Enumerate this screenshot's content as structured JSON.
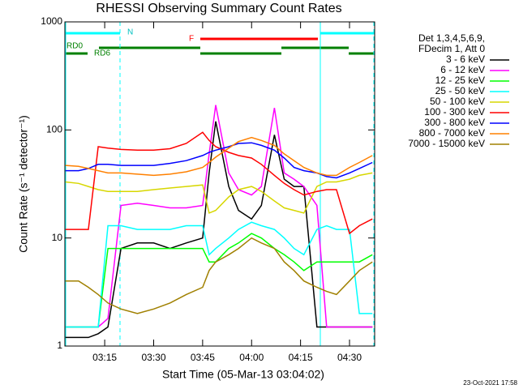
{
  "chart_data": {
    "type": "line",
    "title": "RHESSI Observing Summary Count Rates",
    "x_label": "Start Time (05-Mar-13 03:04:02)",
    "y_label": "Count Rate (s⁻¹ detector⁻¹)",
    "legend_title": [
      "Det 1,3,4,5,6,9,",
      "FDecim 1, Att 0"
    ],
    "footer": "23-Oct-2021 17:58",
    "annotations": [
      "N",
      "F",
      "RD0",
      "RD6"
    ],
    "log_y": true,
    "xlim": [
      2.8,
      97.7
    ],
    "xticks": [
      {
        "value": 15,
        "label": "03:15"
      },
      {
        "value": 30,
        "label": "03:30"
      },
      {
        "value": 45,
        "label": "03:45"
      },
      {
        "value": 60,
        "label": "04:00"
      },
      {
        "value": 75,
        "label": "04:15"
      },
      {
        "value": 90,
        "label": "04:30"
      }
    ],
    "ylim": [
      1,
      1000
    ],
    "yticks": [
      1,
      10,
      100,
      1000
    ],
    "x": [
      3,
      7,
      10,
      13,
      16,
      20,
      25,
      30,
      35,
      40,
      45,
      47,
      49,
      53,
      56,
      60,
      63,
      67,
      70,
      73,
      76,
      80,
      83,
      86,
      90,
      93,
      97
    ],
    "series": [
      {
        "name": "3 - 6 keV",
        "color": "#000000",
        "values": [
          1.2,
          1.2,
          1.2,
          1.3,
          1.5,
          8,
          9,
          9,
          8,
          9,
          10,
          40,
          120,
          30,
          18,
          15,
          20,
          90,
          35,
          30,
          30,
          1.5,
          1.5,
          1.5,
          1.5,
          1.5,
          1.5
        ]
      },
      {
        "name": "6 - 12 keV",
        "color": "#ff00ff",
        "values": [
          1.5,
          1.5,
          1.5,
          1.5,
          1.8,
          20,
          21,
          20,
          19,
          19,
          20,
          60,
          170,
          40,
          28,
          25,
          30,
          160,
          40,
          35,
          30,
          20,
          1.5,
          1.5,
          1.5,
          1.5,
          1.5
        ]
      },
      {
        "name": "12 - 25 keV",
        "color": "#00ff00",
        "values": [
          1.5,
          1.5,
          1.5,
          1.5,
          8,
          8,
          8,
          8,
          8,
          8,
          8,
          6,
          6,
          8,
          9,
          11,
          10,
          8,
          7,
          6,
          5,
          6,
          6,
          6,
          6,
          6,
          7
        ]
      },
      {
        "name": "25 - 50 keV",
        "color": "#00ffff",
        "values": [
          1.5,
          1.5,
          1.5,
          1.5,
          13,
          13,
          12,
          12,
          12,
          13,
          13,
          7,
          8,
          10,
          12,
          14,
          13,
          12,
          10,
          8,
          7,
          12,
          13,
          12,
          12,
          2,
          2
        ]
      },
      {
        "name": "50 - 100 keV",
        "color": "#d7d700",
        "values": [
          33,
          32,
          30,
          28,
          27,
          27,
          27,
          28,
          29,
          30,
          31,
          17,
          18,
          24,
          28,
          30,
          27,
          22,
          19,
          18,
          17,
          30,
          33,
          33,
          35,
          38,
          40
        ]
      },
      {
        "name": "100 - 300 keV",
        "color": "#ff0000",
        "values": [
          12,
          12,
          12,
          70,
          68,
          66,
          65,
          65,
          67,
          75,
          95,
          80,
          70,
          62,
          58,
          55,
          48,
          38,
          32,
          28,
          25,
          27,
          28,
          28,
          11,
          13,
          15
        ]
      },
      {
        "name": "300 - 800 keV",
        "color": "#0000ff",
        "values": [
          42,
          42,
          44,
          48,
          48,
          47,
          47,
          47,
          49,
          52,
          58,
          62,
          65,
          70,
          75,
          76,
          72,
          65,
          55,
          45,
          42,
          40,
          37,
          36,
          40,
          44,
          50
        ]
      },
      {
        "name": "800 - 7000 keV",
        "color": "#ff8000",
        "values": [
          47,
          46,
          44,
          42,
          40,
          40,
          39,
          38,
          39,
          41,
          45,
          50,
          56,
          68,
          78,
          85,
          80,
          72,
          60,
          52,
          45,
          40,
          38,
          38,
          45,
          50,
          58
        ]
      },
      {
        "name": "7000 - 15000 keV",
        "color": "#a08000",
        "values": [
          4,
          4,
          3.5,
          3,
          2.5,
          2.2,
          2,
          2.2,
          2.5,
          3,
          3.5,
          5,
          6,
          7,
          8,
          10,
          9,
          8,
          6,
          5,
          4,
          3.5,
          3.2,
          3,
          4,
          5,
          6
        ]
      }
    ]
  }
}
